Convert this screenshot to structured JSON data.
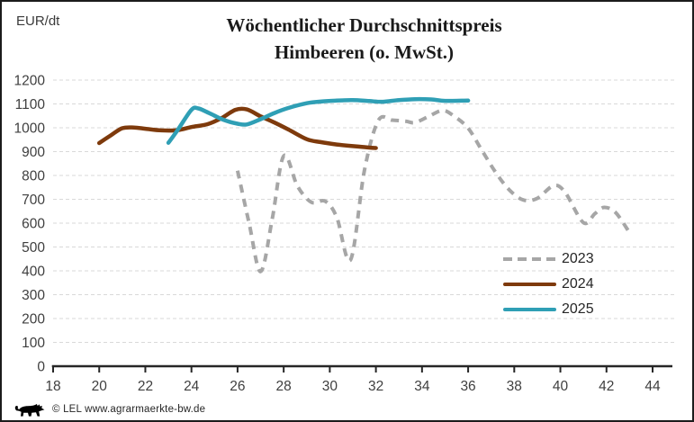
{
  "header": {
    "unit_label": "EUR/dt",
    "title_line1": "Wöchentlicher Durchschnittspreis",
    "title_line2": "Himbeeren (o. MwSt.)"
  },
  "footer": {
    "copyright": "© LEL www.agrarmaerkte-bw.de",
    "logo_name": "baden-wuerttemberg-lion"
  },
  "chart_data": {
    "type": "line",
    "title": "Wöchentlicher Durchschnittspreis Himbeeren (o. MwSt.)",
    "ylabel": "EUR/dt",
    "xlabel": "",
    "x_axis": {
      "min": 18,
      "max": 44,
      "ticks": [
        18,
        20,
        22,
        24,
        26,
        28,
        30,
        32,
        34,
        36,
        38,
        40,
        42,
        44
      ]
    },
    "y_axis": {
      "min": 0,
      "max": 1200,
      "ticks": [
        0,
        100,
        200,
        300,
        400,
        500,
        600,
        700,
        800,
        900,
        1000,
        1100,
        1200
      ]
    },
    "grid": {
      "horizontal": true,
      "style": "dashed",
      "color": "#d9d9d9"
    },
    "axis_color": "#262626",
    "tick_label_color": "#3f3f3f",
    "legend_position": "right-middle",
    "series": [
      {
        "name": "2023",
        "color": "#a6a6a6",
        "line_style": "dashed",
        "points": [
          [
            26,
            820
          ],
          [
            26.5,
            600
          ],
          [
            27,
            397
          ],
          [
            27.5,
            615
          ],
          [
            28,
            882
          ],
          [
            28.6,
            755
          ],
          [
            29.2,
            688
          ],
          [
            29.8,
            692
          ],
          [
            30.3,
            625
          ],
          [
            30.9,
            446
          ],
          [
            31.5,
            820
          ],
          [
            32.1,
            1030
          ],
          [
            32.7,
            1032
          ],
          [
            33.3,
            1027
          ],
          [
            33.7,
            1022
          ],
          [
            34.3,
            1048
          ],
          [
            34.9,
            1073
          ],
          [
            35.4,
            1048
          ],
          [
            36,
            998
          ],
          [
            36.6,
            905
          ],
          [
            37.2,
            812
          ],
          [
            37.8,
            738
          ],
          [
            38.4,
            697
          ],
          [
            39,
            704
          ],
          [
            39.7,
            757
          ],
          [
            40.2,
            730
          ],
          [
            41,
            602
          ],
          [
            41.5,
            640
          ],
          [
            41.9,
            666
          ],
          [
            42.4,
            644
          ],
          [
            43,
            560
          ]
        ]
      },
      {
        "name": "2024",
        "color": "#7e3a0c",
        "line_style": "solid",
        "points": [
          [
            20,
            936
          ],
          [
            20.5,
            968
          ],
          [
            21,
            998
          ],
          [
            21.5,
            1001
          ],
          [
            22,
            996
          ],
          [
            22.7,
            989
          ],
          [
            23.4,
            990
          ],
          [
            24,
            1003
          ],
          [
            24.7,
            1015
          ],
          [
            25.3,
            1040
          ],
          [
            25.9,
            1075
          ],
          [
            26.4,
            1077
          ],
          [
            27,
            1048
          ],
          [
            27.6,
            1022
          ],
          [
            28.2,
            993
          ],
          [
            29,
            952
          ],
          [
            29.6,
            940
          ],
          [
            30.3,
            930
          ],
          [
            31,
            923
          ],
          [
            31.6,
            918
          ],
          [
            32,
            915
          ]
        ]
      },
      {
        "name": "2025",
        "color": "#2f9fb5",
        "line_style": "solid",
        "points": [
          [
            23,
            937
          ],
          [
            23.4,
            990
          ],
          [
            24,
            1075
          ],
          [
            24.3,
            1081
          ],
          [
            24.8,
            1060
          ],
          [
            25.4,
            1033
          ],
          [
            26,
            1017
          ],
          [
            26.4,
            1014
          ],
          [
            27,
            1036
          ],
          [
            27.6,
            1062
          ],
          [
            28.2,
            1083
          ],
          [
            29,
            1103
          ],
          [
            29.6,
            1110
          ],
          [
            30.3,
            1114
          ],
          [
            31,
            1116
          ],
          [
            31.7,
            1112
          ],
          [
            32.3,
            1109
          ],
          [
            33,
            1116
          ],
          [
            33.7,
            1120
          ],
          [
            34.4,
            1119
          ],
          [
            35,
            1113
          ],
          [
            36,
            1114
          ]
        ]
      }
    ]
  }
}
